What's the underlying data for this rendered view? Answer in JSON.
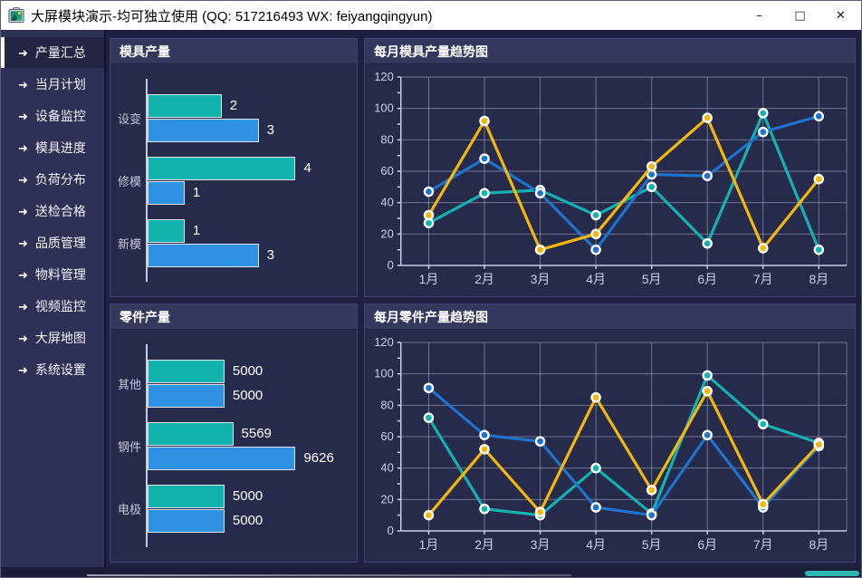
{
  "window": {
    "title": "大屏模块演示-均可独立使用 (QQ: 517216493  WX: feiyangqingyun)",
    "controls": {
      "minimize": "–",
      "maximize": "□",
      "close": "✕"
    }
  },
  "sidebar": {
    "items": [
      {
        "label": "产量汇总",
        "active": true
      },
      {
        "label": "当月计划",
        "active": false
      },
      {
        "label": "设备监控",
        "active": false
      },
      {
        "label": "模具进度",
        "active": false
      },
      {
        "label": "负荷分布",
        "active": false
      },
      {
        "label": "送检合格",
        "active": false
      },
      {
        "label": "品质管理",
        "active": false
      },
      {
        "label": "物料管理",
        "active": false
      },
      {
        "label": "视频监控",
        "active": false
      },
      {
        "label": "大屏地图",
        "active": false
      },
      {
        "label": "系统设置",
        "active": false
      }
    ]
  },
  "colors": {
    "bar_teal": "#10b2ab",
    "bar_blue": "#2e91e1",
    "line_yellow": "#f4b70c",
    "line_blue": "#1d73cd",
    "line_teal": "#14b1b1",
    "grid": "#b9bdd6",
    "axis": "#c9cde2",
    "axis_text": "#ccd0e6",
    "accent_pill": "#2cb7b2"
  },
  "chart_data": [
    {
      "type": "bar",
      "orientation": "horizontal",
      "title": "模具产量",
      "categories": [
        "设变",
        "修模",
        "新模"
      ],
      "series": [
        {
          "color": "bar_teal",
          "values": [
            2,
            4,
            1
          ]
        },
        {
          "color": "bar_blue",
          "values": [
            3,
            1,
            3
          ]
        }
      ]
    },
    {
      "type": "line",
      "title": "每月模具产量趋势图",
      "x": [
        "1月",
        "2月",
        "3月",
        "4月",
        "5月",
        "6月",
        "7月",
        "8月"
      ],
      "ylim": [
        0,
        120
      ],
      "ytick": 20,
      "grid": true,
      "series": [
        {
          "color": "line_teal",
          "values": [
            27,
            46,
            48,
            32,
            50,
            14,
            97,
            10
          ]
        },
        {
          "color": "line_blue",
          "values": [
            47,
            68,
            46,
            10,
            58,
            57,
            85,
            95
          ]
        },
        {
          "color": "line_yellow",
          "values": [
            32,
            92,
            10,
            20,
            63,
            94,
            11,
            55
          ]
        }
      ]
    },
    {
      "type": "bar",
      "orientation": "horizontal",
      "title": "零件产量",
      "categories": [
        "其他",
        "钢件",
        "电极"
      ],
      "series": [
        {
          "color": "bar_teal",
          "values": [
            5000,
            5569,
            5000
          ]
        },
        {
          "color": "bar_blue",
          "values": [
            5000,
            9626,
            5000
          ]
        }
      ]
    },
    {
      "type": "line",
      "title": "每月零件产量趋势图",
      "x": [
        "1月",
        "2月",
        "3月",
        "4月",
        "5月",
        "6月",
        "7月",
        "8月"
      ],
      "ylim": [
        0,
        120
      ],
      "ytick": 20,
      "grid": true,
      "series": [
        {
          "color": "line_teal",
          "values": [
            72,
            14,
            10,
            40,
            11,
            99,
            68,
            56
          ]
        },
        {
          "color": "line_blue",
          "values": [
            91,
            61,
            57,
            15,
            10,
            61,
            15,
            54
          ]
        },
        {
          "color": "line_yellow",
          "values": [
            10,
            52,
            12,
            85,
            26,
            89,
            17,
            55
          ]
        }
      ]
    }
  ]
}
